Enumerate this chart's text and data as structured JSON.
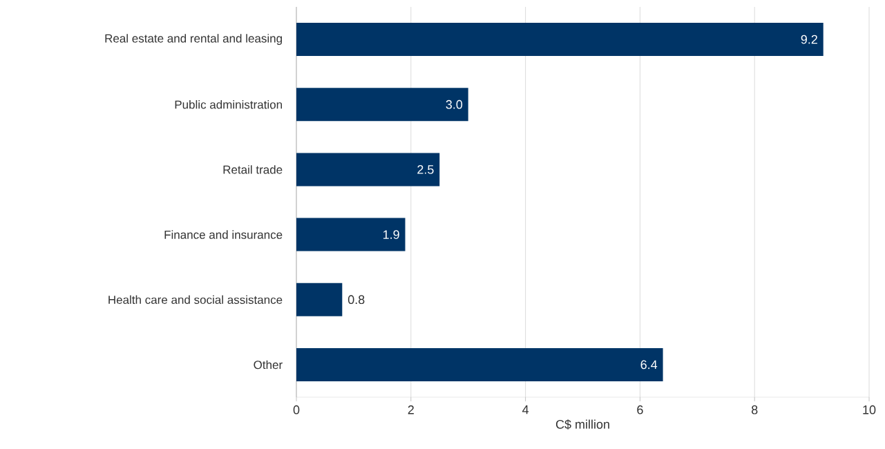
{
  "chart_data": {
    "type": "bar",
    "orientation": "horizontal",
    "categories": [
      "Real estate and rental and leasing",
      "Public administration",
      "Retail trade",
      "Finance and insurance",
      "Health care and social assistance",
      "Other"
    ],
    "values": [
      9.2,
      3.0,
      2.5,
      1.9,
      0.8,
      6.4
    ],
    "color": "#003466",
    "xlabel": "C$ million",
    "xlim": [
      0,
      10
    ],
    "xticks": [
      0,
      2,
      4,
      6,
      8,
      10
    ],
    "grid": "x",
    "value_labels": [
      "9.2",
      "3.0",
      "2.5",
      "1.9",
      "0.8",
      "6.4"
    ]
  }
}
